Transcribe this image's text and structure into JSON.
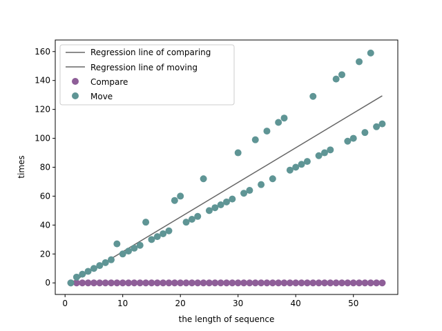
{
  "chart_data": {
    "type": "scatter",
    "xlabel": "the length of sequence",
    "ylabel": "times",
    "xlim": [
      -1.7,
      57.7
    ],
    "ylim": [
      -8,
      168
    ],
    "x_ticks": [
      0,
      10,
      20,
      30,
      40,
      50
    ],
    "y_ticks": [
      0,
      20,
      40,
      60,
      80,
      100,
      120,
      140,
      160
    ],
    "legend_position": "upper-left",
    "series": [
      {
        "name": "Compare",
        "kind": "scatter",
        "color": "#8e5e98",
        "x": [
          1,
          2,
          3,
          4,
          5,
          6,
          7,
          8,
          9,
          10,
          11,
          12,
          13,
          14,
          15,
          16,
          17,
          18,
          19,
          20,
          21,
          22,
          23,
          24,
          25,
          26,
          27,
          28,
          29,
          30,
          31,
          32,
          33,
          34,
          35,
          36,
          37,
          38,
          39,
          40,
          41,
          42,
          43,
          44,
          45,
          46,
          47,
          48,
          49,
          50,
          51,
          52,
          53,
          54,
          55
        ],
        "y": [
          0,
          0,
          0,
          0,
          0,
          0,
          0,
          0,
          0,
          0,
          0,
          0,
          0,
          0,
          0,
          0,
          0,
          0,
          0,
          0,
          0,
          0,
          0,
          0,
          0,
          0,
          0,
          0,
          0,
          0,
          0,
          0,
          0,
          0,
          0,
          0,
          0,
          0,
          0,
          0,
          0,
          0,
          0,
          0,
          0,
          0,
          0,
          0,
          0,
          0,
          0,
          0,
          0,
          0,
          0
        ]
      },
      {
        "name": "Move",
        "kind": "scatter",
        "color": "#5f9595",
        "x": [
          1,
          2,
          3,
          4,
          5,
          6,
          7,
          8,
          9,
          10,
          11,
          12,
          13,
          14,
          15,
          16,
          17,
          18,
          19,
          20,
          21,
          22,
          23,
          24,
          25,
          26,
          27,
          28,
          29,
          30,
          31,
          32,
          33,
          34,
          35,
          36,
          37,
          38,
          39,
          40,
          41,
          42,
          43,
          44,
          45,
          46,
          47,
          48,
          49,
          50,
          51,
          52,
          53,
          54,
          55
        ],
        "y": [
          0,
          4,
          6,
          8,
          10,
          12,
          14,
          16,
          27,
          20,
          22,
          24,
          26,
          42,
          30,
          32,
          34,
          36,
          57,
          60,
          42,
          44,
          46,
          72,
          50,
          52,
          54,
          56,
          58,
          90,
          62,
          64,
          99,
          68,
          105,
          72,
          111,
          114,
          78,
          80,
          82,
          84,
          129,
          88,
          90,
          92,
          141,
          144,
          98,
          100,
          153,
          104,
          159,
          108,
          110
        ]
      },
      {
        "name": "Regression line of comparing",
        "kind": "line",
        "color": "#666666",
        "x": [
          1,
          55
        ],
        "y": [
          0,
          0
        ]
      },
      {
        "name": "Regression line of moving",
        "kind": "line",
        "color": "#666666",
        "x": [
          1,
          55
        ],
        "y": [
          0,
          129.4
        ]
      }
    ]
  }
}
